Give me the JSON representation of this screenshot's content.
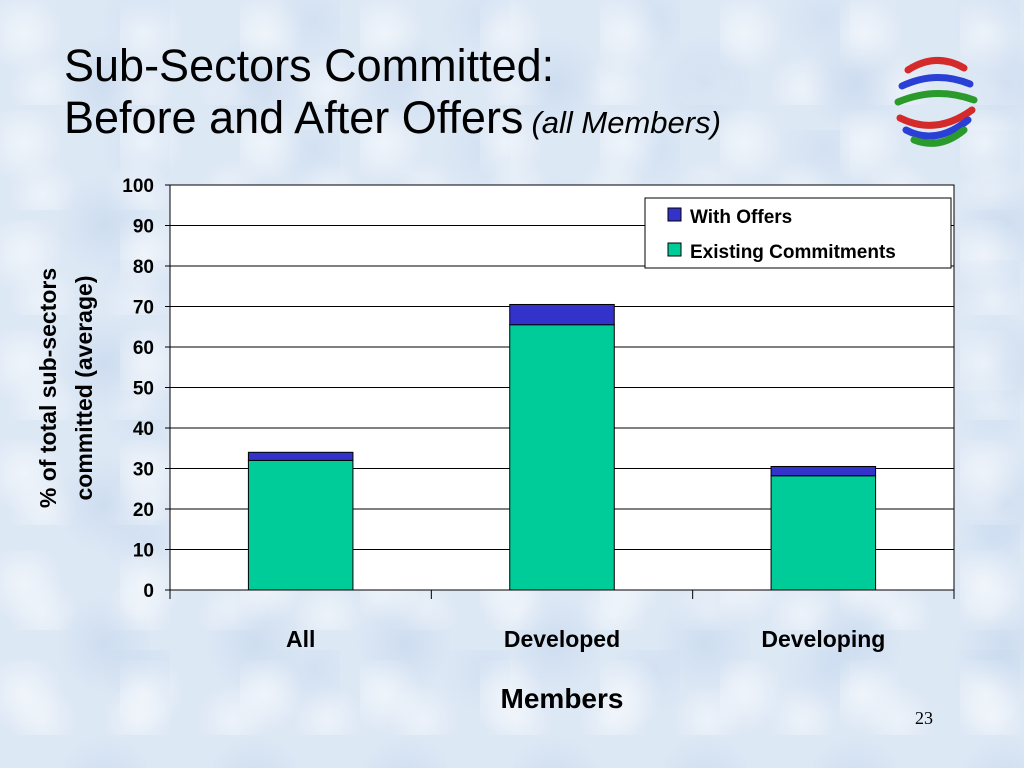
{
  "slide": {
    "title_line1": "Sub-Sectors Committed:",
    "title_line2": "Before and After Offers",
    "title_subtitle": "(all Members)",
    "page_number": "23"
  },
  "logo": {
    "icon": "wto-globe-logo-icon",
    "colors": [
      "#d42a2a",
      "#2a3fd4",
      "#2a9a2a"
    ]
  },
  "chart_data": {
    "type": "bar",
    "stacked": true,
    "categories": [
      "All",
      "Developed",
      "Developing"
    ],
    "series": [
      {
        "name": "Existing Commitments",
        "values": [
          32,
          65.5,
          28.2
        ],
        "color": "#00cc99"
      },
      {
        "name": "With Offers",
        "values": [
          2,
          5,
          2.3
        ],
        "color": "#3333cc"
      }
    ],
    "legend_order": [
      "With Offers",
      "Existing Commitments"
    ],
    "xlabel": "Members",
    "ylabel_line1": "% of total sub-sectors",
    "ylabel_line2": "committed (average)",
    "ylim": [
      0,
      100
    ],
    "yticks": [
      0,
      10,
      20,
      30,
      40,
      50,
      60,
      70,
      80,
      90,
      100
    ],
    "grid": true,
    "legend_position": "top-right"
  }
}
